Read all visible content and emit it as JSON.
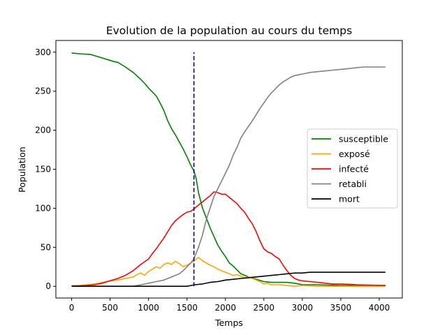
{
  "chart_data": {
    "type": "line",
    "title": "Evolution de la population au cours du temps",
    "xlabel": "Temps",
    "ylabel": "Population",
    "xlim": [
      -205,
      4300
    ],
    "ylim": [
      -15,
      315
    ],
    "xticks": [
      0,
      500,
      1000,
      1500,
      2000,
      2500,
      3000,
      3500,
      4000
    ],
    "yticks": [
      0,
      50,
      100,
      150,
      200,
      250,
      300
    ],
    "grid": false,
    "legend_position": "center-right",
    "vline": {
      "x": 1590,
      "y_range": [
        0,
        300
      ],
      "color": "#0000aa",
      "style": "dashed"
    },
    "series": [
      {
        "name": "susceptible",
        "color": "#008000",
        "points": [
          [
            0,
            299
          ],
          [
            100,
            298
          ],
          [
            250,
            297
          ],
          [
            350,
            294
          ],
          [
            450,
            291
          ],
          [
            550,
            288
          ],
          [
            600,
            287
          ],
          [
            700,
            281
          ],
          [
            800,
            274
          ],
          [
            900,
            265
          ],
          [
            950,
            260
          ],
          [
            1000,
            254
          ],
          [
            1050,
            249
          ],
          [
            1100,
            244
          ],
          [
            1150,
            235
          ],
          [
            1200,
            225
          ],
          [
            1250,
            212
          ],
          [
            1300,
            202
          ],
          [
            1350,
            194
          ],
          [
            1400,
            185
          ],
          [
            1450,
            176
          ],
          [
            1500,
            166
          ],
          [
            1550,
            155
          ],
          [
            1590,
            148
          ],
          [
            1620,
            138
          ],
          [
            1650,
            120
          ],
          [
            1700,
            101
          ],
          [
            1750,
            88
          ],
          [
            1800,
            75
          ],
          [
            1850,
            64
          ],
          [
            1900,
            53
          ],
          [
            1950,
            45
          ],
          [
            2000,
            38
          ],
          [
            2050,
            30
          ],
          [
            2100,
            26
          ],
          [
            2150,
            21
          ],
          [
            2200,
            16
          ],
          [
            2300,
            12
          ],
          [
            2400,
            9
          ],
          [
            2500,
            6
          ],
          [
            2600,
            5
          ],
          [
            2700,
            5
          ],
          [
            2800,
            5
          ],
          [
            2900,
            4
          ],
          [
            3000,
            2
          ],
          [
            3200,
            2
          ],
          [
            3500,
            1
          ],
          [
            4080,
            1
          ]
        ]
      },
      {
        "name": "exposé",
        "color": "#ffa500",
        "points": [
          [
            0,
            1
          ],
          [
            100,
            1
          ],
          [
            200,
            2
          ],
          [
            300,
            3
          ],
          [
            400,
            5
          ],
          [
            500,
            7
          ],
          [
            600,
            8
          ],
          [
            700,
            10
          ],
          [
            800,
            12
          ],
          [
            850,
            15
          ],
          [
            900,
            17
          ],
          [
            950,
            14
          ],
          [
            1000,
            19
          ],
          [
            1050,
            22
          ],
          [
            1100,
            25
          ],
          [
            1150,
            23
          ],
          [
            1200,
            28
          ],
          [
            1250,
            30
          ],
          [
            1300,
            28
          ],
          [
            1350,
            32
          ],
          [
            1400,
            29
          ],
          [
            1450,
            25
          ],
          [
            1500,
            27
          ],
          [
            1550,
            30
          ],
          [
            1600,
            33
          ],
          [
            1650,
            37
          ],
          [
            1700,
            33
          ],
          [
            1750,
            30
          ],
          [
            1800,
            27
          ],
          [
            1850,
            25
          ],
          [
            1900,
            22
          ],
          [
            1950,
            20
          ],
          [
            2000,
            18
          ],
          [
            2050,
            16
          ],
          [
            2100,
            14
          ],
          [
            2150,
            15
          ],
          [
            2200,
            13
          ],
          [
            2250,
            11
          ],
          [
            2300,
            12
          ],
          [
            2350,
            10
          ],
          [
            2400,
            8
          ],
          [
            2450,
            6
          ],
          [
            2500,
            3
          ],
          [
            2550,
            4
          ],
          [
            2600,
            2
          ],
          [
            2700,
            2
          ],
          [
            2800,
            1
          ],
          [
            2900,
            0
          ],
          [
            3000,
            1
          ],
          [
            3200,
            0
          ],
          [
            3500,
            0
          ],
          [
            4080,
            0
          ]
        ]
      },
      {
        "name": "infecté",
        "color": "#ff0000",
        "points": [
          [
            0,
            0
          ],
          [
            200,
            1
          ],
          [
            300,
            2
          ],
          [
            400,
            4
          ],
          [
            500,
            7
          ],
          [
            600,
            10
          ],
          [
            700,
            14
          ],
          [
            800,
            20
          ],
          [
            900,
            28
          ],
          [
            1000,
            35
          ],
          [
            1050,
            42
          ],
          [
            1100,
            48
          ],
          [
            1150,
            55
          ],
          [
            1200,
            62
          ],
          [
            1250,
            70
          ],
          [
            1300,
            78
          ],
          [
            1350,
            84
          ],
          [
            1400,
            88
          ],
          [
            1450,
            92
          ],
          [
            1500,
            95
          ],
          [
            1550,
            96
          ],
          [
            1590,
            99
          ],
          [
            1650,
            104
          ],
          [
            1700,
            108
          ],
          [
            1750,
            112
          ],
          [
            1800,
            116
          ],
          [
            1850,
            121
          ],
          [
            1900,
            120
          ],
          [
            1950,
            118
          ],
          [
            2000,
            118
          ],
          [
            2050,
            114
          ],
          [
            2100,
            110
          ],
          [
            2150,
            106
          ],
          [
            2200,
            100
          ],
          [
            2250,
            95
          ],
          [
            2300,
            87
          ],
          [
            2350,
            80
          ],
          [
            2400,
            70
          ],
          [
            2450,
            58
          ],
          [
            2500,
            48
          ],
          [
            2550,
            44
          ],
          [
            2600,
            42
          ],
          [
            2650,
            38
          ],
          [
            2700,
            35
          ],
          [
            2750,
            27
          ],
          [
            2800,
            20
          ],
          [
            2850,
            14
          ],
          [
            2900,
            10
          ],
          [
            2950,
            8
          ],
          [
            3000,
            7
          ],
          [
            3100,
            6
          ],
          [
            3200,
            5
          ],
          [
            3300,
            4
          ],
          [
            3400,
            3
          ],
          [
            3500,
            3
          ],
          [
            3700,
            2
          ],
          [
            4080,
            1
          ]
        ]
      },
      {
        "name": "retabli",
        "color": "#808080",
        "points": [
          [
            0,
            0
          ],
          [
            700,
            0
          ],
          [
            800,
            0
          ],
          [
            900,
            2
          ],
          [
            1000,
            4
          ],
          [
            1100,
            6
          ],
          [
            1200,
            8
          ],
          [
            1300,
            12
          ],
          [
            1400,
            16
          ],
          [
            1450,
            20
          ],
          [
            1500,
            25
          ],
          [
            1550,
            30
          ],
          [
            1590,
            35
          ],
          [
            1650,
            50
          ],
          [
            1700,
            65
          ],
          [
            1750,
            85
          ],
          [
            1800,
            100
          ],
          [
            1850,
            115
          ],
          [
            1900,
            125
          ],
          [
            1950,
            135
          ],
          [
            2000,
            145
          ],
          [
            2050,
            155
          ],
          [
            2100,
            168
          ],
          [
            2150,
            178
          ],
          [
            2200,
            190
          ],
          [
            2250,
            198
          ],
          [
            2300,
            205
          ],
          [
            2350,
            212
          ],
          [
            2400,
            220
          ],
          [
            2450,
            228
          ],
          [
            2500,
            235
          ],
          [
            2550,
            242
          ],
          [
            2600,
            248
          ],
          [
            2650,
            253
          ],
          [
            2700,
            258
          ],
          [
            2750,
            262
          ],
          [
            2800,
            265
          ],
          [
            2850,
            268
          ],
          [
            2900,
            270
          ],
          [
            2950,
            271
          ],
          [
            3000,
            272
          ],
          [
            3050,
            273
          ],
          [
            3100,
            274
          ],
          [
            3200,
            275
          ],
          [
            3300,
            276
          ],
          [
            3400,
            277
          ],
          [
            3500,
            278
          ],
          [
            3600,
            279
          ],
          [
            3700,
            280
          ],
          [
            3800,
            281
          ],
          [
            4080,
            281
          ]
        ]
      },
      {
        "name": "mort",
        "color": "#000000",
        "points": [
          [
            0,
            0
          ],
          [
            1500,
            0
          ],
          [
            1550,
            1
          ],
          [
            1600,
            2
          ],
          [
            1700,
            3
          ],
          [
            1800,
            5
          ],
          [
            1900,
            6
          ],
          [
            2000,
            8
          ],
          [
            2100,
            9
          ],
          [
            2200,
            10
          ],
          [
            2300,
            11
          ],
          [
            2400,
            12
          ],
          [
            2500,
            13
          ],
          [
            2600,
            14
          ],
          [
            2700,
            15
          ],
          [
            2800,
            16
          ],
          [
            2900,
            17
          ],
          [
            3000,
            17
          ],
          [
            3100,
            18
          ],
          [
            3200,
            18
          ],
          [
            3500,
            18
          ],
          [
            4080,
            18
          ]
        ]
      }
    ]
  }
}
